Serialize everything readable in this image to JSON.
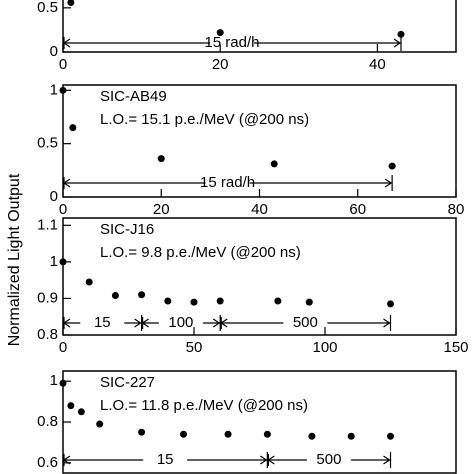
{
  "y_label": "Normalized Light Output",
  "chart_data": [
    {
      "type": "scatter",
      "xlim": [
        0,
        50
      ],
      "ylim": [
        0,
        0.6
      ],
      "xticks": [
        0,
        20,
        40
      ],
      "yticks": [
        0,
        0.5
      ],
      "series": [
        {
          "color": "#000000",
          "x": [
            1,
            20,
            43
          ],
          "values": [
            0.56,
            0.22,
            0.2
          ]
        }
      ],
      "regions": [
        {
          "label": "15 rad/h",
          "start": 0,
          "end": 43
        }
      ]
    },
    {
      "type": "scatter",
      "name": "SIC-AB49",
      "subtitle": "L.O.= 15.1 p.e./MeV (@200 ns)",
      "xlim": [
        0,
        80
      ],
      "ylim": [
        0,
        1.05
      ],
      "xticks": [
        0,
        20,
        40,
        60,
        80
      ],
      "yticks": [
        0,
        0.5,
        1
      ],
      "series": [
        {
          "color": "#000000",
          "x": [
            0,
            2,
            20,
            43,
            67
          ],
          "values": [
            1.0,
            0.65,
            0.36,
            0.31,
            0.29
          ]
        }
      ],
      "regions": [
        {
          "label": "15 rad/h",
          "start": 0,
          "end": 67
        }
      ]
    },
    {
      "type": "scatter",
      "name": "SIC-J16",
      "subtitle": "L.O.= 9.8 p.e./MeV (@200 ns)",
      "xlim": [
        0,
        150
      ],
      "ylim": [
        0.8,
        1.12
      ],
      "xticks": [
        0,
        50,
        100,
        150
      ],
      "yticks": [
        0.8,
        0.9,
        1,
        1.1
      ],
      "series": [
        {
          "color": "#000000",
          "x": [
            0,
            10,
            20,
            30,
            40,
            50,
            60,
            82,
            94,
            125
          ],
          "values": [
            1.0,
            0.945,
            0.908,
            0.91,
            0.893,
            0.89,
            0.893,
            0.893,
            0.89,
            0.885
          ]
        }
      ],
      "regions": [
        {
          "label": "15",
          "start": 0,
          "end": 30
        },
        {
          "label": "100",
          "start": 30,
          "end": 60
        },
        {
          "label": "500",
          "start": 60,
          "end": 125
        }
      ]
    },
    {
      "type": "scatter",
      "name": "SIC-227",
      "subtitle": "L.O.= 11.8 p.e./MeV (@200 ns)",
      "xlim": [
        0,
        150
      ],
      "ylim": [
        0.55,
        1.05
      ],
      "yticks": [
        0.6,
        0.8,
        1
      ],
      "series": [
        {
          "color": "#000000",
          "x": [
            0,
            3,
            7,
            14,
            30,
            46,
            63,
            78,
            95,
            110,
            125
          ],
          "values": [
            0.99,
            0.88,
            0.85,
            0.79,
            0.75,
            0.74,
            0.74,
            0.74,
            0.73,
            0.73,
            0.73
          ]
        }
      ],
      "regions": [
        {
          "label": "15",
          "start": 0,
          "end": 78
        },
        {
          "label": "500",
          "start": 78,
          "end": 125
        }
      ]
    }
  ]
}
